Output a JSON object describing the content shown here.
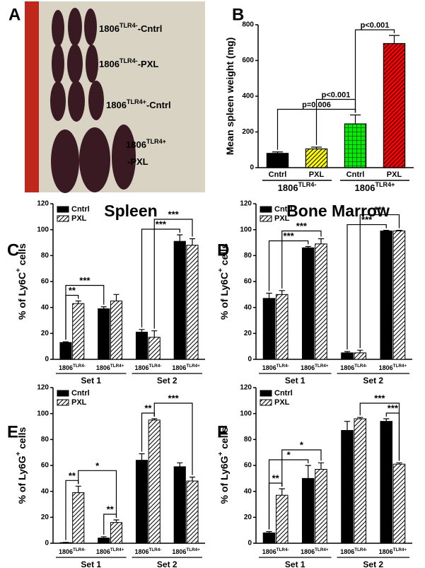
{
  "photo": {
    "panel": "A",
    "labels": [
      {
        "base": "1806",
        "sup": "TLR4-",
        "suffix": "-Cntrl"
      },
      {
        "base": "1806",
        "sup": "TLR4-",
        "suffix": "-PXL"
      },
      {
        "base": "1806",
        "sup": "TLR4+",
        "suffix": "-Cntrl"
      },
      {
        "base": "1806",
        "sup": "TLR4+",
        "suffix": "-PXL"
      }
    ]
  },
  "chart_data": [
    {
      "type": "bar",
      "panel": "B",
      "ylabel": {
        "text": "Mean spleen weight (mg)"
      },
      "categories": [
        "Cntrl",
        "PXL",
        "Cntrl",
        "PXL"
      ],
      "values": [
        80,
        105,
        245,
        695
      ],
      "errors": [
        8,
        10,
        50,
        45
      ],
      "colors": [
        "#000000",
        "#ffff00",
        "#00ee00",
        "#ff0000"
      ],
      "patterns": [
        "solid",
        "hatch",
        "grid",
        "hatch"
      ],
      "groups": [
        {
          "base": "1806",
          "sup": "TLR4-"
        },
        {
          "base": "1806",
          "sup": "TLR4+"
        }
      ],
      "annotations": [
        {
          "label": "p=0.006",
          "from": 0,
          "to": 2
        },
        {
          "label": "p<0.001",
          "from": 1,
          "to": 2
        },
        {
          "label": "p<0.001",
          "from": 2,
          "to": 3
        }
      ],
      "ylim": [
        0,
        800
      ],
      "yticks": [
        0,
        200,
        400,
        600,
        800
      ]
    },
    {
      "type": "grouped_bar",
      "panel": "C",
      "title": "Spleen",
      "ylabel": {
        "text": "% of Ly6C",
        "sup": "+",
        "suffix": " cells"
      },
      "categories": [
        {
          "base": "1806",
          "sup": "TLR4-"
        },
        {
          "base": "1806",
          "sup": "TLR4+"
        },
        {
          "base": "1806",
          "sup": "TLR4-"
        },
        {
          "base": "1806",
          "sup": "TLR4+"
        }
      ],
      "groups": [
        "Set 1",
        "Set 2"
      ],
      "series": [
        {
          "name": "Cntrl",
          "color": "#000000",
          "pattern": "solid",
          "values": [
            13,
            39,
            21,
            91
          ],
          "errors": [
            0.5,
            1.5,
            2,
            5
          ]
        },
        {
          "name": "PXL",
          "color": "#ffffff",
          "pattern": "hatch",
          "values": [
            43,
            45,
            17,
            88
          ],
          "errors": [
            2,
            5,
            5,
            5
          ]
        }
      ],
      "annotations": [
        {
          "label": "**",
          "from": [
            0,
            0
          ],
          "to": [
            1,
            0
          ]
        },
        {
          "label": "***",
          "from": [
            0,
            0
          ],
          "to": [
            0,
            1
          ]
        },
        {
          "label": "***",
          "from": [
            0,
            2
          ],
          "to": [
            0,
            3
          ]
        },
        {
          "label": "***",
          "from": [
            1,
            2
          ],
          "to": [
            1,
            3
          ]
        }
      ],
      "legend": "upper left",
      "ylim": [
        0,
        120
      ],
      "yticks": [
        0,
        20,
        40,
        60,
        80,
        100,
        120
      ]
    },
    {
      "type": "grouped_bar",
      "panel": "D",
      "title": "Bone Marrow",
      "ylabel": {
        "text": "% of Ly6C",
        "sup": "+",
        "suffix": " cells"
      },
      "categories": [
        {
          "base": "1806",
          "sup": "TLR4-"
        },
        {
          "base": "1806",
          "sup": "TLR4+"
        },
        {
          "base": "1806",
          "sup": "TLR4-"
        },
        {
          "base": "1806",
          "sup": "TLR4+"
        }
      ],
      "groups": [
        "Set 1",
        "Set 2"
      ],
      "series": [
        {
          "name": "Cntrl",
          "color": "#000000",
          "pattern": "solid",
          "values": [
            47,
            86,
            5,
            99
          ],
          "errors": [
            4,
            1,
            1,
            0.5
          ]
        },
        {
          "name": "PXL",
          "color": "#ffffff",
          "pattern": "hatch",
          "values": [
            50,
            89,
            5,
            99
          ],
          "errors": [
            3,
            4,
            2,
            0.5
          ]
        }
      ],
      "annotations": [
        {
          "label": "***",
          "from": [
            0,
            0
          ],
          "to": [
            0,
            1
          ]
        },
        {
          "label": "***",
          "from": [
            1,
            0
          ],
          "to": [
            1,
            1
          ]
        },
        {
          "label": "***",
          "from": [
            0,
            2
          ],
          "to": [
            0,
            3
          ]
        },
        {
          "label": "***",
          "from": [
            1,
            2
          ],
          "to": [
            1,
            3
          ]
        }
      ],
      "legend": "upper left",
      "ylim": [
        0,
        120
      ],
      "yticks": [
        0,
        20,
        40,
        60,
        80,
        100,
        120
      ]
    },
    {
      "type": "grouped_bar",
      "panel": "E",
      "ylabel": {
        "text": "% of Ly6G",
        "sup": "+",
        "suffix": " cells"
      },
      "categories": [
        {
          "base": "1806",
          "sup": "TLR4-"
        },
        {
          "base": "1806",
          "sup": "TLR4+"
        },
        {
          "base": "1806",
          "sup": "TLR4-"
        },
        {
          "base": "1806",
          "sup": "TLR4+"
        }
      ],
      "groups": [
        "Set 1",
        "Set 2"
      ],
      "series": [
        {
          "name": "Cntrl",
          "color": "#000000",
          "pattern": "solid",
          "values": [
            0.5,
            4,
            64,
            59
          ],
          "errors": [
            0.2,
            1,
            5,
            3
          ]
        },
        {
          "name": "PXL",
          "color": "#ffffff",
          "pattern": "hatch",
          "values": [
            39,
            16,
            95,
            48
          ],
          "errors": [
            5,
            2,
            1,
            3
          ]
        }
      ],
      "annotations": [
        {
          "label": "**",
          "from": [
            0,
            0
          ],
          "to": [
            1,
            0
          ]
        },
        {
          "label": "**",
          "from": [
            0,
            1
          ],
          "to": [
            1,
            1
          ]
        },
        {
          "label": "*",
          "from": [
            1,
            0
          ],
          "to": [
            1,
            1
          ]
        },
        {
          "label": "**",
          "from": [
            0,
            2
          ],
          "to": [
            1,
            2
          ]
        },
        {
          "label": "***",
          "from": [
            1,
            2
          ],
          "to": [
            1,
            3
          ]
        }
      ],
      "legend": "upper left",
      "ylim": [
        0,
        120
      ],
      "yticks": [
        0,
        20,
        40,
        60,
        80,
        100,
        120
      ]
    },
    {
      "type": "grouped_bar",
      "panel": "F",
      "ylabel": {
        "text": "% of Ly6G",
        "sup": "+",
        "suffix": " cells"
      },
      "categories": [
        {
          "base": "1806",
          "sup": "TLR4-"
        },
        {
          "base": "1806",
          "sup": "TLR4+"
        },
        {
          "base": "1806",
          "sup": "TLR4-"
        },
        {
          "base": "1806",
          "sup": "TLR4+"
        }
      ],
      "groups": [
        "Set 1",
        "Set 2"
      ],
      "series": [
        {
          "name": "Cntrl",
          "color": "#000000",
          "pattern": "solid",
          "values": [
            8,
            50,
            87,
            94
          ],
          "errors": [
            1,
            10,
            7,
            2
          ]
        },
        {
          "name": "PXL",
          "color": "#ffffff",
          "pattern": "hatch",
          "values": [
            37,
            57,
            96,
            61
          ],
          "errors": [
            5,
            5,
            1,
            1
          ]
        }
      ],
      "annotations": [
        {
          "label": "**",
          "from": [
            0,
            0
          ],
          "to": [
            1,
            0
          ]
        },
        {
          "label": "*",
          "from": [
            0,
            0
          ],
          "to": [
            0,
            1
          ]
        },
        {
          "label": "*",
          "from": [
            1,
            0
          ],
          "to": [
            1,
            1
          ]
        },
        {
          "label": "***",
          "from": [
            0,
            3
          ],
          "to": [
            1,
            3
          ]
        },
        {
          "label": "***",
          "from": [
            1,
            2
          ],
          "to": [
            1,
            3
          ]
        }
      ],
      "legend": "upper left",
      "ylim": [
        0,
        120
      ],
      "yticks": [
        0,
        20,
        40,
        60,
        80,
        100,
        120
      ]
    }
  ]
}
